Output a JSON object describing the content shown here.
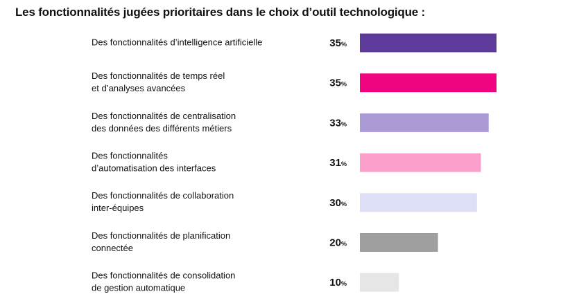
{
  "chart_data": {
    "type": "bar",
    "orientation": "horizontal",
    "title": "Les fonctionnalités jugées prioritaires dans le choix d’outil technologique :",
    "xlabel": "",
    "ylabel": "",
    "xlim": [
      0,
      35
    ],
    "value_unit": "%",
    "categories": [
      [
        "Des fonctionnalités d’intelligence artificielle"
      ],
      [
        "Des fonctionnalités de temps réel",
        "et d’analyses avancées"
      ],
      [
        "Des fonctionnalités de centralisation",
        "des données des différents métiers"
      ],
      [
        "Des fonctionnalités",
        "d’automatisation des interfaces"
      ],
      [
        "Des fonctionnalités de collaboration",
        "inter-équipes"
      ],
      [
        "Des fonctionnalités de planification",
        "connectée"
      ],
      [
        "Des fonctionnalités de consolidation",
        "de gestion automatique"
      ]
    ],
    "values": [
      35,
      35,
      33,
      31,
      30,
      20,
      10
    ],
    "colors": [
      "#5e3a9a",
      "#f0047f",
      "#ab9ad6",
      "#fba0cb",
      "#dcdff5",
      "#a09fa0",
      "#e6e6e6"
    ]
  }
}
